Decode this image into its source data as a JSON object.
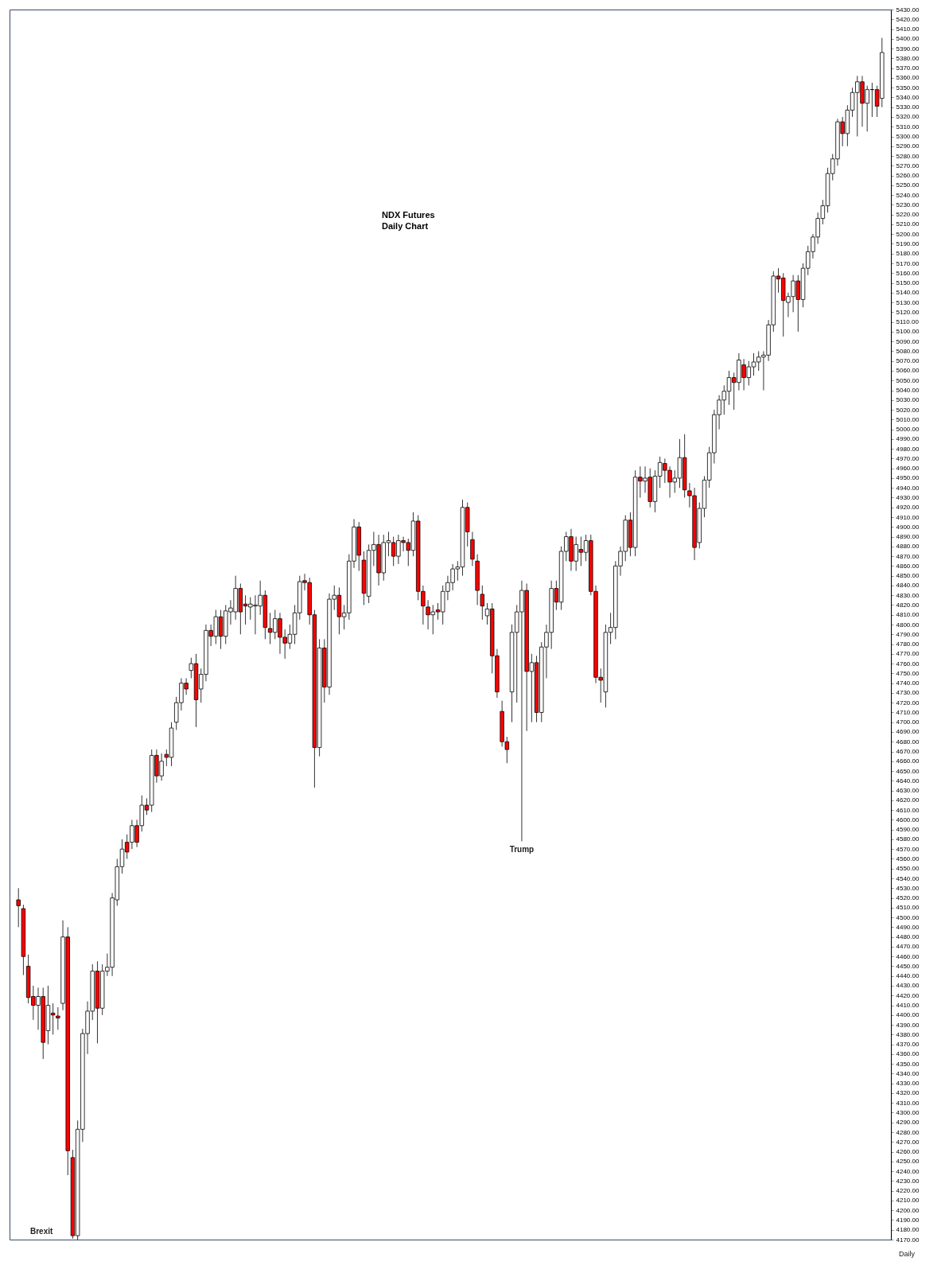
{
  "chart_data": {
    "type": "candlestick",
    "title": "NDX  Futures\nDaily Chart",
    "tick_labels": "y",
    "grid": false,
    "ylim": [
      4170,
      5430
    ],
    "categories": [
      null,
      null,
      null,
      null,
      null,
      null,
      null,
      null,
      null,
      null,
      null,
      null,
      null,
      null,
      null,
      null,
      null,
      null,
      null,
      null,
      null,
      null,
      null,
      null,
      null,
      null,
      null,
      null,
      null,
      null,
      null,
      null,
      null,
      null,
      null,
      null,
      null,
      null,
      null,
      null,
      null,
      null,
      null,
      null,
      null,
      null,
      null,
      null,
      null,
      null,
      null,
      null,
      null,
      null,
      null,
      null,
      null,
      null,
      null,
      null,
      null,
      null,
      null,
      null,
      null,
      null,
      null,
      null,
      null,
      null,
      null,
      null,
      null,
      null,
      null,
      null,
      null,
      null,
      null,
      null,
      null,
      null,
      null,
      null,
      null,
      null,
      null,
      null,
      null,
      null,
      null,
      null,
      null,
      null,
      null,
      null,
      null,
      null,
      null,
      null,
      null,
      null,
      null,
      null,
      null,
      null,
      null,
      null,
      null,
      null,
      null,
      null,
      null,
      null,
      null,
      null,
      null,
      null,
      null,
      null,
      null,
      null,
      null,
      null,
      null,
      null,
      null,
      null,
      null,
      null,
      null,
      null,
      null,
      null,
      null,
      null,
      null,
      null,
      null,
      null,
      null,
      null,
      null,
      null,
      null,
      null,
      null,
      null,
      null,
      null,
      null,
      null,
      null,
      null,
      null,
      null,
      null,
      null,
      null,
      null,
      null,
      null,
      null,
      null,
      null,
      null,
      null,
      null,
      null,
      null,
      null,
      null,
      null,
      null,
      null,
      null
    ],
    "ohlc": [
      [
        4518,
        4530,
        4490,
        4512
      ],
      [
        4509,
        4513,
        4441,
        4460
      ],
      [
        4450,
        4462,
        4412,
        4418
      ],
      [
        4419,
        4430,
        4395,
        4410
      ],
      [
        4410,
        4428,
        4385,
        4419
      ],
      [
        4419,
        4428,
        4355,
        4372
      ],
      [
        4384,
        4430,
        4370,
        4410
      ],
      [
        4402,
        4412,
        4380,
        4400
      ],
      [
        4399,
        4408,
        4385,
        4397
      ],
      [
        4412,
        4497,
        4405,
        4480
      ],
      [
        4480,
        4490,
        4236,
        4261
      ],
      [
        4254,
        4262,
        4171,
        4174
      ],
      [
        4174,
        4292,
        4170,
        4283
      ],
      [
        4283,
        4386,
        4270,
        4381
      ],
      [
        4381,
        4414,
        4360,
        4404
      ],
      [
        4404,
        4452,
        4395,
        4445
      ],
      [
        4445,
        4455,
        4371,
        4407
      ],
      [
        4407,
        4452,
        4400,
        4445
      ],
      [
        4445,
        4463,
        4440,
        4449
      ],
      [
        4449,
        4525,
        4440,
        4520
      ],
      [
        4518,
        4560,
        4512,
        4552
      ],
      [
        4552,
        4580,
        4545,
        4570
      ],
      [
        4577,
        4585,
        4560,
        4567
      ],
      [
        4577,
        4600,
        4570,
        4594
      ],
      [
        4594,
        4600,
        4572,
        4577
      ],
      [
        4594,
        4625,
        4588,
        4615
      ],
      [
        4615,
        4622,
        4605,
        4610
      ],
      [
        4615,
        4672,
        4608,
        4666
      ],
      [
        4666,
        4672,
        4638,
        4645
      ],
      [
        4645,
        4668,
        4640,
        4660
      ],
      [
        4667,
        4672,
        4655,
        4664
      ],
      [
        4664,
        4700,
        4655,
        4694
      ],
      [
        4700,
        4726,
        4692,
        4720
      ],
      [
        4720,
        4745,
        4712,
        4740
      ],
      [
        4740,
        4745,
        4728,
        4734
      ],
      [
        4753,
        4766,
        4745,
        4760
      ],
      [
        4760,
        4770,
        4695,
        4723
      ],
      [
        4734,
        4755,
        4720,
        4749
      ],
      [
        4749,
        4800,
        4742,
        4794
      ],
      [
        4794,
        4800,
        4778,
        4788
      ],
      [
        4788,
        4815,
        4780,
        4808
      ],
      [
        4808,
        4815,
        4775,
        4788
      ],
      [
        4788,
        4820,
        4780,
        4814
      ],
      [
        4813,
        4825,
        4800,
        4817
      ],
      [
        4813,
        4850,
        4805,
        4837
      ],
      [
        4837,
        4842,
        4790,
        4813
      ],
      [
        4821,
        4830,
        4800,
        4819
      ],
      [
        4818,
        4828,
        4805,
        4821
      ],
      [
        4819,
        4830,
        4790,
        4820
      ],
      [
        4819,
        4845,
        4810,
        4830
      ],
      [
        4830,
        4835,
        4785,
        4797
      ],
      [
        4796,
        4812,
        4780,
        4792
      ],
      [
        4792,
        4815,
        4785,
        4806
      ],
      [
        4806,
        4812,
        4770,
        4787
      ],
      [
        4787,
        4795,
        4765,
        4781
      ],
      [
        4781,
        4800,
        4775,
        4790
      ],
      [
        4790,
        4820,
        4780,
        4812
      ],
      [
        4812,
        4850,
        4805,
        4844
      ],
      [
        4845,
        4852,
        4835,
        4843
      ],
      [
        4843,
        4848,
        4800,
        4810
      ],
      [
        4810,
        4815,
        4633,
        4674
      ],
      [
        4674,
        4785,
        4665,
        4776
      ],
      [
        4776,
        4785,
        4720,
        4736
      ],
      [
        4736,
        4832,
        4728,
        4826
      ],
      [
        4826,
        4840,
        4815,
        4830
      ],
      [
        4830,
        4838,
        4790,
        4808
      ],
      [
        4808,
        4820,
        4795,
        4812
      ],
      [
        4812,
        4872,
        4805,
        4865
      ],
      [
        4865,
        4908,
        4858,
        4900
      ],
      [
        4900,
        4905,
        4855,
        4871
      ],
      [
        4866,
        4875,
        4820,
        4832
      ],
      [
        4829,
        4882,
        4822,
        4876
      ],
      [
        4876,
        4895,
        4860,
        4882
      ],
      [
        4882,
        4892,
        4840,
        4853
      ],
      [
        4853,
        4892,
        4845,
        4884
      ],
      [
        4884,
        4895,
        4870,
        4886
      ],
      [
        4884,
        4890,
        4860,
        4870
      ],
      [
        4870,
        4892,
        4862,
        4886
      ],
      [
        4886,
        4890,
        4875,
        4884
      ],
      [
        4884,
        4888,
        4860,
        4876
      ],
      [
        4876,
        4915,
        4870,
        4906
      ],
      [
        4906,
        4912,
        4825,
        4834
      ],
      [
        4834,
        4840,
        4800,
        4819
      ],
      [
        4818,
        4825,
        4795,
        4810
      ],
      [
        4810,
        4820,
        4790,
        4813
      ],
      [
        4815,
        4822,
        4805,
        4813
      ],
      [
        4813,
        4840,
        4800,
        4834
      ],
      [
        4834,
        4850,
        4825,
        4843
      ],
      [
        4843,
        4862,
        4835,
        4857
      ],
      [
        4857,
        4865,
        4845,
        4859
      ],
      [
        4859,
        4928,
        4850,
        4920
      ],
      [
        4920,
        4925,
        4880,
        4895
      ],
      [
        4887,
        4895,
        4860,
        4867
      ],
      [
        4865,
        4872,
        4820,
        4835
      ],
      [
        4831,
        4840,
        4805,
        4819
      ],
      [
        4809,
        4822,
        4800,
        4816
      ],
      [
        4816,
        4822,
        4750,
        4768
      ],
      [
        4768,
        4775,
        4725,
        4731
      ],
      [
        4711,
        4722,
        4675,
        4680
      ],
      [
        4680,
        4685,
        4658,
        4672
      ],
      [
        4731,
        4800,
        4700,
        4792
      ],
      [
        4792,
        4820,
        4720,
        4813
      ],
      [
        4813,
        4845,
        4578,
        4835
      ],
      [
        4835,
        4842,
        4691,
        4752
      ],
      [
        4752,
        4770,
        4700,
        4761
      ],
      [
        4761,
        4768,
        4700,
        4710
      ],
      [
        4710,
        4782,
        4700,
        4777
      ],
      [
        4777,
        4800,
        4745,
        4792
      ],
      [
        4792,
        4845,
        4775,
        4837
      ],
      [
        4837,
        4845,
        4815,
        4823
      ],
      [
        4823,
        4880,
        4815,
        4875
      ],
      [
        4875,
        4895,
        4865,
        4890
      ],
      [
        4890,
        4898,
        4855,
        4865
      ],
      [
        4865,
        4890,
        4855,
        4882
      ],
      [
        4877,
        4890,
        4860,
        4874
      ],
      [
        4874,
        4892,
        4865,
        4886
      ],
      [
        4886,
        4892,
        4830,
        4834
      ],
      [
        4834,
        4840,
        4740,
        4746
      ],
      [
        4746,
        4755,
        4720,
        4743
      ],
      [
        4731,
        4800,
        4715,
        4792
      ],
      [
        4792,
        4812,
        4780,
        4797
      ],
      [
        4797,
        4865,
        4785,
        4860
      ],
      [
        4860,
        4880,
        4850,
        4875
      ],
      [
        4875,
        4912,
        4865,
        4907
      ],
      [
        4907,
        4915,
        4870,
        4879
      ],
      [
        4879,
        4958,
        4870,
        4951
      ],
      [
        4951,
        4962,
        4930,
        4947
      ],
      [
        4947,
        4962,
        4935,
        4950
      ],
      [
        4951,
        4960,
        4920,
        4926
      ],
      [
        4926,
        4958,
        4915,
        4952
      ],
      [
        4952,
        4972,
        4940,
        4966
      ],
      [
        4965,
        4970,
        4945,
        4958
      ],
      [
        4958,
        4962,
        4930,
        4946
      ],
      [
        4946,
        4958,
        4935,
        4950
      ],
      [
        4950,
        4990,
        4940,
        4971
      ],
      [
        4971,
        4995,
        4930,
        4938
      ],
      [
        4937,
        4945,
        4920,
        4932
      ],
      [
        4932,
        4940,
        4866,
        4879
      ],
      [
        4884,
        4925,
        4878,
        4919
      ],
      [
        4919,
        4952,
        4910,
        4948
      ],
      [
        4948,
        4982,
        4940,
        4976
      ],
      [
        4976,
        5020,
        4965,
        5015
      ],
      [
        5015,
        5035,
        5000,
        5030
      ],
      [
        5030,
        5045,
        5015,
        5039
      ],
      [
        5039,
        5060,
        5025,
        5053
      ],
      [
        5053,
        5058,
        5020,
        5048
      ],
      [
        5048,
        5078,
        5040,
        5071
      ],
      [
        5066,
        5072,
        5040,
        5053
      ],
      [
        5053,
        5070,
        5045,
        5064
      ],
      [
        5064,
        5078,
        5055,
        5069
      ],
      [
        5069,
        5080,
        5060,
        5074
      ],
      [
        5074,
        5080,
        5040,
        5076
      ],
      [
        5076,
        5112,
        5070,
        5107
      ],
      [
        5107,
        5162,
        5100,
        5157
      ],
      [
        5157,
        5165,
        5140,
        5154
      ],
      [
        5155,
        5160,
        5095,
        5132
      ],
      [
        5130,
        5140,
        5115,
        5136
      ],
      [
        5136,
        5158,
        5120,
        5152
      ],
      [
        5152,
        5158,
        5100,
        5133
      ],
      [
        5133,
        5170,
        5125,
        5165
      ],
      [
        5165,
        5188,
        5158,
        5182
      ],
      [
        5182,
        5200,
        5175,
        5197
      ],
      [
        5197,
        5222,
        5190,
        5216
      ],
      [
        5216,
        5235,
        5210,
        5229
      ],
      [
        5229,
        5268,
        5222,
        5262
      ],
      [
        5262,
        5282,
        5255,
        5277
      ],
      [
        5277,
        5318,
        5270,
        5315
      ],
      [
        5315,
        5320,
        5290,
        5303
      ],
      [
        5303,
        5332,
        5290,
        5327
      ],
      [
        5327,
        5350,
        5320,
        5345
      ],
      [
        5345,
        5362,
        5300,
        5356
      ],
      [
        5356,
        5362,
        5310,
        5334
      ],
      [
        5334,
        5352,
        5305,
        5348
      ],
      [
        5348,
        5355,
        5320,
        5348
      ],
      [
        5348,
        5352,
        5320,
        5331
      ],
      [
        5339,
        5401,
        5330,
        5386
      ]
    ],
    "annotations": [
      "Brexit",
      {
        "text": "Trump",
        "y": 4578
      },
      "Daily"
    ],
    "yticks": [
      {
        "value": 4170,
        "label": "4170.00"
      },
      {
        "value": 4180,
        "label": "4180.00"
      },
      {
        "value": 4190,
        "label": "4190.00"
      },
      {
        "value": 4200,
        "label": "4200.00"
      },
      {
        "value": 4210,
        "label": "4210.00"
      },
      {
        "value": 4220,
        "label": "4220.00"
      },
      {
        "value": 4230,
        "label": "4230.00"
      },
      {
        "value": 4240,
        "label": "4240.00"
      },
      {
        "value": 4250,
        "label": "4250.00"
      },
      {
        "value": 4260,
        "label": "4260.00"
      },
      {
        "value": 4270,
        "label": "4270.00"
      },
      {
        "value": 4280,
        "label": "4280.00"
      },
      {
        "value": 4290,
        "label": "4290.00"
      },
      {
        "value": 4300,
        "label": "4300.00"
      },
      {
        "value": 4310,
        "label": "4310.00"
      },
      {
        "value": 4320,
        "label": "4320.00"
      },
      {
        "value": 4330,
        "label": "4330.00"
      },
      {
        "value": 4340,
        "label": "4340.00"
      },
      {
        "value": 4350,
        "label": "4350.00"
      },
      {
        "value": 4360,
        "label": "4360.00"
      },
      {
        "value": 4370,
        "label": "4370.00"
      },
      {
        "value": 4380,
        "label": "4380.00"
      },
      {
        "value": 4390,
        "label": "4390.00"
      },
      {
        "value": 4400,
        "label": "4400.00"
      },
      {
        "value": 4410,
        "label": "4410.00"
      },
      {
        "value": 4420,
        "label": "4420.00"
      },
      {
        "value": 4430,
        "label": "4430.00"
      },
      {
        "value": 4440,
        "label": "4440.00"
      },
      {
        "value": 4450,
        "label": "4450.00"
      },
      {
        "value": 4460,
        "label": "4460.00"
      },
      {
        "value": 4470,
        "label": "4470.00"
      },
      {
        "value": 4480,
        "label": "4480.00"
      },
      {
        "value": 4490,
        "label": "4490.00"
      },
      {
        "value": 4500,
        "label": "4500.00"
      },
      {
        "value": 4510,
        "label": "4510.00"
      },
      {
        "value": 4520,
        "label": "4520.00"
      },
      {
        "value": 4530,
        "label": "4530.00"
      },
      {
        "value": 4540,
        "label": "4540.00"
      },
      {
        "value": 4550,
        "label": "4550.00"
      },
      {
        "value": 4560,
        "label": "4560.00"
      },
      {
        "value": 4570,
        "label": "4570.00"
      },
      {
        "value": 4580,
        "label": "4580.00"
      },
      {
        "value": 4590,
        "label": "4590.00"
      },
      {
        "value": 4600,
        "label": "4600.00"
      },
      {
        "value": 4610,
        "label": "4610.00"
      },
      {
        "value": 4620,
        "label": "4620.00"
      },
      {
        "value": 4630,
        "label": "4630.00"
      },
      {
        "value": 4640,
        "label": "4640.00"
      },
      {
        "value": 4650,
        "label": "4650.00"
      },
      {
        "value": 4660,
        "label": "4660.00"
      },
      {
        "value": 4670,
        "label": "4670.00"
      },
      {
        "value": 4680,
        "label": "4680.00"
      },
      {
        "value": 4690,
        "label": "4690.00"
      },
      {
        "value": 4700,
        "label": "4700.00"
      },
      {
        "value": 4710,
        "label": "4710.00"
      },
      {
        "value": 4720,
        "label": "4720.00"
      },
      {
        "value": 4730,
        "label": "4730.00"
      },
      {
        "value": 4740,
        "label": "4740.00"
      },
      {
        "value": 4750,
        "label": "4750.00"
      },
      {
        "value": 4760,
        "label": "4760.00"
      },
      {
        "value": 4770,
        "label": "4770.00"
      },
      {
        "value": 4780,
        "label": "4780.00"
      },
      {
        "value": 4790,
        "label": "4790.00"
      },
      {
        "value": 4800,
        "label": "4800.00"
      },
      {
        "value": 4810,
        "label": "4810.00"
      },
      {
        "value": 4820,
        "label": "4820.00"
      },
      {
        "value": 4830,
        "label": "4830.00"
      },
      {
        "value": 4840,
        "label": "4840.00"
      },
      {
        "value": 4850,
        "label": "4850.00"
      },
      {
        "value": 4860,
        "label": "4860.00"
      },
      {
        "value": 4870,
        "label": "4870.00"
      },
      {
        "value": 4880,
        "label": "4880.00"
      },
      {
        "value": 4890,
        "label": "4890.00"
      },
      {
        "value": 4900,
        "label": "4900.00"
      },
      {
        "value": 4910,
        "label": "4910.00"
      },
      {
        "value": 4920,
        "label": "4920.00"
      },
      {
        "value": 4930,
        "label": "4930.00"
      },
      {
        "value": 4940,
        "label": "4940.00"
      },
      {
        "value": 4950,
        "label": "4950.00"
      },
      {
        "value": 4960,
        "label": "4960.00"
      },
      {
        "value": 4970,
        "label": "4970.00"
      },
      {
        "value": 4980,
        "label": "4980.00"
      },
      {
        "value": 4990,
        "label": "4990.00"
      },
      {
        "value": 5000,
        "label": "5000.00"
      },
      {
        "value": 5010,
        "label": "5010.00"
      },
      {
        "value": 5020,
        "label": "5020.00"
      },
      {
        "value": 5030,
        "label": "5030.00"
      },
      {
        "value": 5040,
        "label": "5040.00"
      },
      {
        "value": 5050,
        "label": "5050.00"
      },
      {
        "value": 5060,
        "label": "5060.00"
      },
      {
        "value": 5070,
        "label": "5070.00"
      },
      {
        "value": 5080,
        "label": "5080.00"
      },
      {
        "value": 5090,
        "label": "5090.00"
      },
      {
        "value": 5100,
        "label": "5100.00"
      },
      {
        "value": 5110,
        "label": "5110.00"
      },
      {
        "value": 5120,
        "label": "5120.00"
      },
      {
        "value": 5130,
        "label": "5130.00"
      },
      {
        "value": 5140,
        "label": "5140.00"
      },
      {
        "value": 5150,
        "label": "5150.00"
      },
      {
        "value": 5160,
        "label": "5160.00"
      },
      {
        "value": 5170,
        "label": "5170.00"
      },
      {
        "value": 5180,
        "label": "5180.00"
      },
      {
        "value": 5190,
        "label": "5190.00"
      },
      {
        "value": 5200,
        "label": "5200.00"
      },
      {
        "value": 5210,
        "label": "5210.00"
      },
      {
        "value": 5220,
        "label": "5220.00"
      },
      {
        "value": 5230,
        "label": "5230.00"
      },
      {
        "value": 5240,
        "label": "5240.00"
      },
      {
        "value": 5250,
        "label": "5250.00"
      },
      {
        "value": 5260,
        "label": "5260.00"
      },
      {
        "value": 5270,
        "label": "5270.00"
      },
      {
        "value": 5280,
        "label": "5280.00"
      },
      {
        "value": 5290,
        "label": "5290.00"
      },
      {
        "value": 5300,
        "label": "5300.00"
      },
      {
        "value": 5310,
        "label": "5310.00"
      },
      {
        "value": 5320,
        "label": "5320.00"
      },
      {
        "value": 5330,
        "label": "5330.00"
      },
      {
        "value": 5340,
        "label": "5340.00"
      },
      {
        "value": 5350,
        "label": "5350.00"
      },
      {
        "value": 5360,
        "label": "5360.00"
      },
      {
        "value": 5370,
        "label": "5370.00"
      },
      {
        "value": 5380,
        "label": "5380.00"
      },
      {
        "value": 5390,
        "label": "5390.00"
      },
      {
        "value": 5400,
        "label": "5400.00"
      },
      {
        "value": 5410,
        "label": "5410.00"
      },
      {
        "value": 5420,
        "label": "5420.00"
      },
      {
        "value": 5430,
        "label": "5430.00"
      }
    ]
  }
}
